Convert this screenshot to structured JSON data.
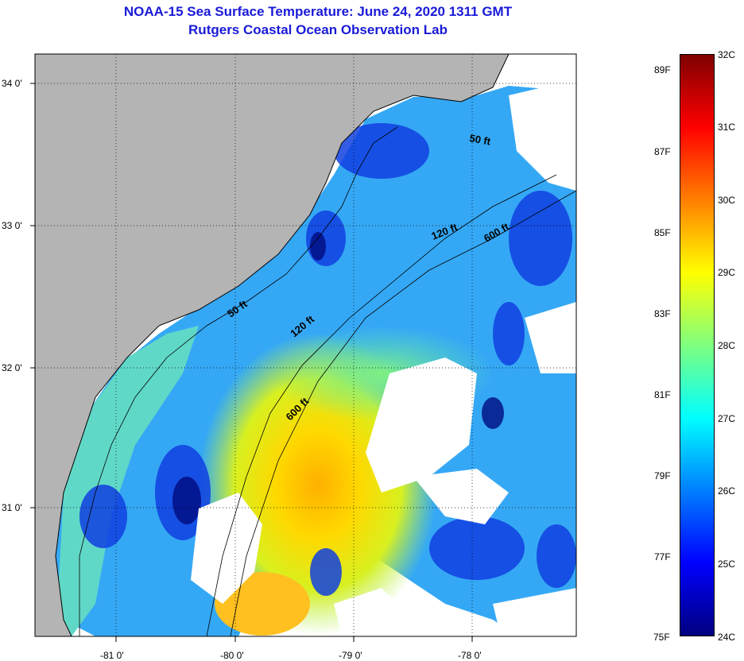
{
  "header": {
    "title": "NOAA-15 Sea Surface Temperature:  June 24, 2020 1311 GMT",
    "subtitle": "Rutgers Coastal Ocean Observation Lab"
  },
  "map": {
    "lat_labels": [
      "34 0'",
      "33 0'",
      "32 0'",
      "31 0'"
    ],
    "lon_labels": [
      "-81 0'",
      "-80 0'",
      "-79 0'",
      "-78 0'"
    ],
    "contour_labels": [
      "50 ft",
      "120 ft",
      "600 ft",
      "50 ft",
      "120 ft",
      "600 ft"
    ],
    "colors": {
      "land": "#b4b4b4",
      "cloud": "#ffffff",
      "coast": "#000000"
    }
  },
  "colorbar": {
    "fahrenheit": [
      "89F",
      "87F",
      "85F",
      "83F",
      "81F",
      "79F",
      "77F",
      "75F"
    ],
    "celsius": [
      "32C",
      "31C",
      "30C",
      "29C",
      "28C",
      "27C",
      "26C",
      "25C",
      "24C"
    ],
    "colors": [
      "#00007f",
      "#0000ff",
      "#007fff",
      "#00ffff",
      "#7fff7f",
      "#ffff00",
      "#ff7f00",
      "#ff0000",
      "#7f0000"
    ]
  }
}
